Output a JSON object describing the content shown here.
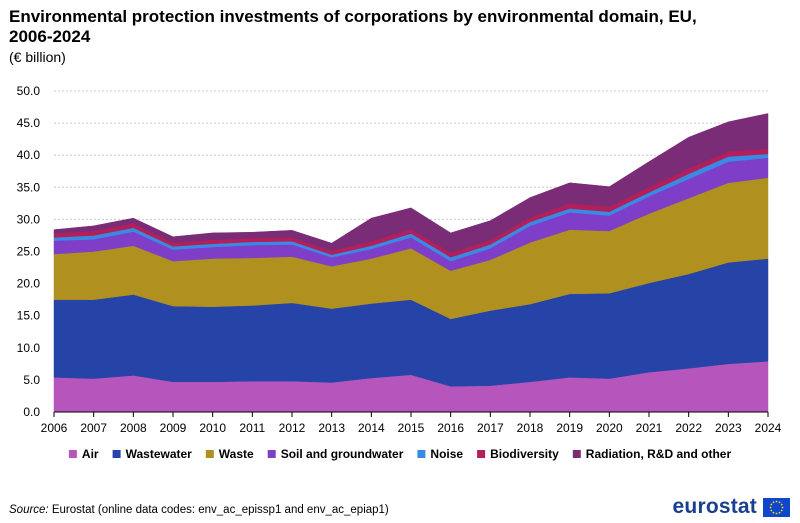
{
  "header": {
    "title": "Environmental protection investments of corporations by environmental domain, EU, 2006-2024",
    "subtitle": "(€ billion)"
  },
  "footer": {
    "source_label": "Source:",
    "source_text": " Eurostat (online data codes: env_ac_epissp1 and env_ac_epiap1)",
    "logo_text": "eurostat",
    "logo_icon": "eu-flag-icon"
  },
  "colors": {
    "Air": "#b656bd",
    "Wastewater": "#2644a7",
    "Waste": "#b09120",
    "Soil and groundwater": "#7e3ec8",
    "Noise": "#388ae2",
    "Biodiversity": "#b21f5a",
    "Radiation, R&D and other": "#7a2c76"
  },
  "chart_data": {
    "type": "area",
    "stacked": true,
    "title": "Environmental protection investments of corporations by environmental domain, EU, 2006-2024",
    "ylabel": "€ billion",
    "ylim": [
      0,
      50
    ],
    "yticks": [
      "0.0",
      "5.0",
      "10.0",
      "15.0",
      "20.0",
      "25.0",
      "30.0",
      "35.0",
      "40.0",
      "45.0",
      "50.0"
    ],
    "ytick_values": [
      0,
      5,
      10,
      15,
      20,
      25,
      30,
      35,
      40,
      45,
      50
    ],
    "grid": true,
    "legend_position": "bottom",
    "categories": [
      "2006",
      "2007",
      "2008",
      "2009",
      "2010",
      "2011",
      "2012",
      "2013",
      "2014",
      "2015",
      "2016",
      "2017",
      "2018",
      "2019",
      "2020",
      "2021",
      "2022",
      "2023",
      "2024"
    ],
    "series": [
      {
        "name": "Air",
        "values": [
          5.4,
          5.2,
          5.7,
          4.7,
          4.7,
          4.8,
          4.8,
          4.6,
          5.3,
          5.8,
          4.0,
          4.1,
          4.7,
          5.4,
          5.2,
          6.2,
          6.8,
          7.5,
          7.9
        ]
      },
      {
        "name": "Wastewater",
        "values": [
          12.1,
          12.3,
          12.6,
          11.8,
          11.7,
          11.8,
          12.2,
          11.5,
          11.6,
          11.7,
          10.5,
          11.7,
          12.1,
          13.0,
          13.3,
          13.9,
          14.7,
          15.8,
          16.0
        ]
      },
      {
        "name": "Waste",
        "values": [
          7.1,
          7.5,
          7.6,
          7.0,
          7.5,
          7.4,
          7.2,
          6.6,
          7.0,
          8.0,
          7.5,
          7.9,
          9.6,
          10.0,
          9.7,
          10.8,
          11.8,
          12.4,
          12.6
        ]
      },
      {
        "name": "Soil and groundwater",
        "values": [
          2.1,
          1.9,
          2.2,
          1.8,
          1.8,
          2.0,
          1.9,
          1.4,
          1.5,
          1.7,
          1.5,
          1.8,
          2.6,
          2.7,
          2.4,
          2.7,
          3.0,
          3.3,
          3.1
        ]
      },
      {
        "name": "Noise",
        "values": [
          0.5,
          0.6,
          0.6,
          0.5,
          0.5,
          0.5,
          0.5,
          0.4,
          0.5,
          0.6,
          0.6,
          0.6,
          0.6,
          0.6,
          0.6,
          0.6,
          0.8,
          0.8,
          0.6
        ]
      },
      {
        "name": "Biodiversity",
        "values": [
          0.6,
          0.7,
          0.7,
          0.6,
          0.6,
          0.6,
          0.6,
          0.6,
          0.7,
          0.7,
          0.7,
          0.7,
          0.7,
          0.8,
          0.8,
          0.8,
          0.8,
          0.8,
          0.8
        ]
      },
      {
        "name": "Radiation, R&D and other",
        "values": [
          0.6,
          0.8,
          0.8,
          0.9,
          1.1,
          0.9,
          1.1,
          1.2,
          3.6,
          3.3,
          3.1,
          3.0,
          3.1,
          3.2,
          3.1,
          4.0,
          4.9,
          4.6,
          5.5
        ]
      }
    ]
  }
}
